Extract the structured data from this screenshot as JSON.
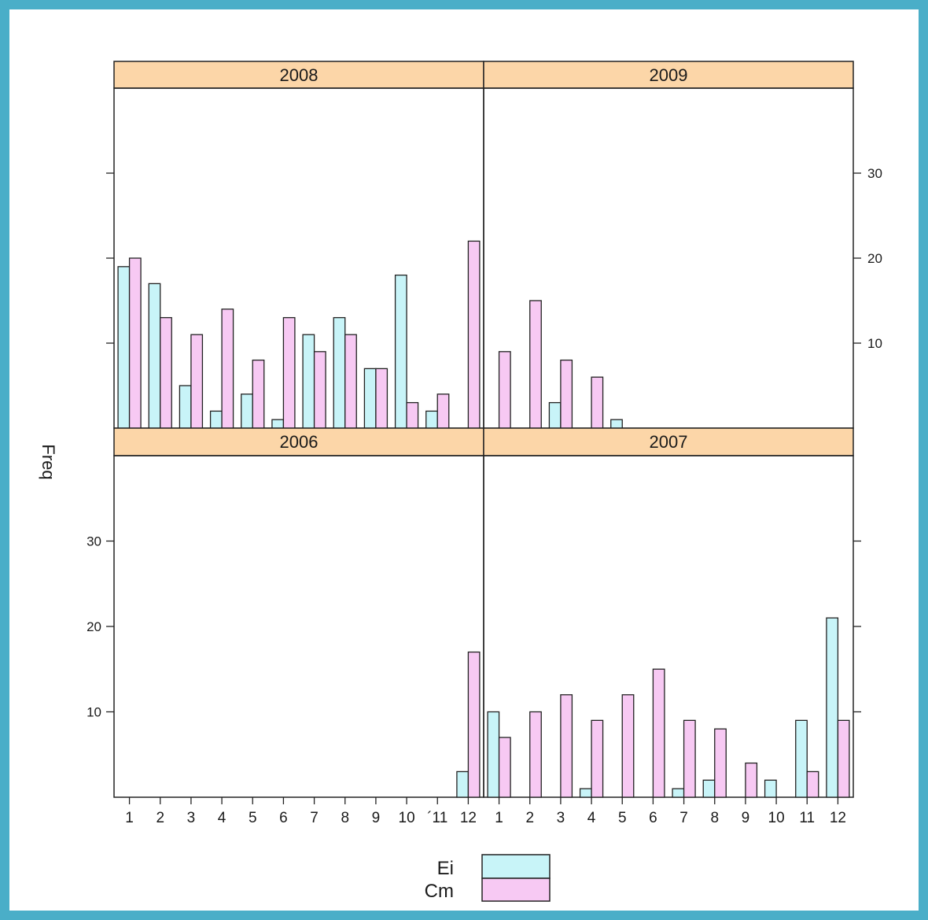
{
  "chart_data": {
    "type": "bar",
    "ylabel": "Freq",
    "xlabel": "",
    "ylim": [
      0,
      40
    ],
    "yticks": [
      10,
      20,
      30
    ],
    "categories": [
      "1",
      "2",
      "3",
      "4",
      "5",
      "6",
      "7",
      "8",
      "9",
      "10",
      "11",
      "12"
    ],
    "colors": {
      "Ei": "#c8f4f8",
      "Cm": "#f7c9f3"
    },
    "legend": {
      "position": "bottom",
      "labels": [
        "Ei",
        "Cm"
      ]
    },
    "category_labels": {
      "2006": [
        "1",
        "2",
        "3",
        "4",
        "5",
        "6",
        "7",
        "8",
        "9",
        "10",
        "´11",
        "12"
      ],
      "2007": [
        "1",
        "2",
        "3",
        "4",
        "5",
        "6",
        "7",
        "8",
        "9",
        "10",
        "11",
        "12"
      ]
    },
    "panels": [
      {
        "title": "2008",
        "series": [
          {
            "name": "Ei",
            "values": [
              19,
              17,
              5,
              2,
              4,
              1,
              11,
              13,
              7,
              18,
              2,
              0
            ]
          },
          {
            "name": "Cm",
            "values": [
              20,
              13,
              11,
              14,
              8,
              13,
              9,
              11,
              7,
              3,
              4,
              22
            ]
          }
        ]
      },
      {
        "title": "2009",
        "series": [
          {
            "name": "Ei",
            "values": [
              0,
              0,
              3,
              0,
              1,
              0,
              0,
              0,
              0,
              0,
              0,
              0
            ]
          },
          {
            "name": "Cm",
            "values": [
              9,
              15,
              8,
              6,
              0,
              0,
              0,
              0,
              0,
              0,
              0,
              0
            ]
          }
        ]
      },
      {
        "title": "2006",
        "series": [
          {
            "name": "Ei",
            "values": [
              0,
              0,
              0,
              0,
              0,
              0,
              0,
              0,
              0,
              0,
              0,
              3
            ]
          },
          {
            "name": "Cm",
            "values": [
              0,
              0,
              0,
              0,
              0,
              0,
              0,
              0,
              0,
              0,
              0,
              17
            ]
          }
        ]
      },
      {
        "title": "2007",
        "series": [
          {
            "name": "Ei",
            "values": [
              10,
              0,
              0,
              1,
              0,
              0,
              1,
              2,
              0,
              2,
              9,
              21
            ]
          },
          {
            "name": "Cm",
            "values": [
              7,
              10,
              12,
              9,
              12,
              15,
              9,
              8,
              4,
              0,
              3,
              9
            ]
          }
        ]
      }
    ]
  }
}
